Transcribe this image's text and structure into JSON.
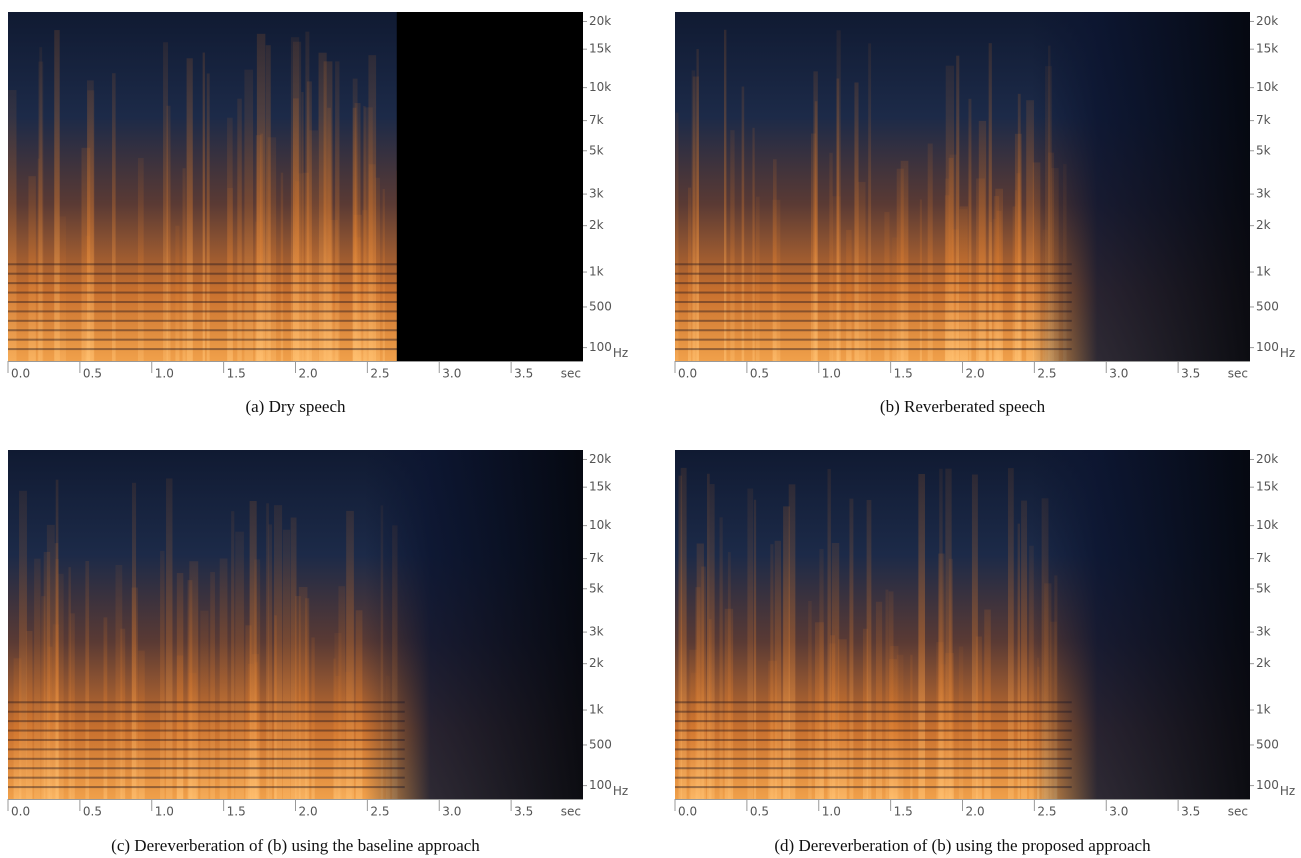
{
  "chart_data": [
    {
      "type": "spectrogram",
      "caption": "(a) Dry speech",
      "x_unit": "sec",
      "y_unit": "Hz",
      "yscale": "mel",
      "xlim": [
        0,
        4.0
      ],
      "ylim": [
        0,
        22050
      ],
      "xticks": [
        {
          "value": 0,
          "label": "0.0"
        },
        0.5,
        {
          "value": 1,
          "label": "1.0"
        },
        1.5,
        {
          "value": 2,
          "label": "2.0"
        },
        2.5,
        {
          "value": 3,
          "label": "3.0"
        },
        3.5
      ],
      "yticks": [
        100,
        500,
        {
          "value": 1000,
          "label": "1k"
        },
        {
          "value": 2000,
          "label": "2k"
        },
        {
          "value": 3000,
          "label": "3k"
        },
        {
          "value": 5000,
          "label": "5k"
        },
        {
          "value": 7000,
          "label": "7k"
        },
        {
          "value": 10000,
          "label": "10k"
        },
        {
          "value": 15000,
          "label": "15k"
        },
        {
          "value": 20000,
          "label": "20k"
        }
      ]
    },
    {
      "type": "spectrogram",
      "caption": "(b) Reverberated speech",
      "x_unit": "sec",
      "y_unit": "Hz",
      "yscale": "mel",
      "xlim": [
        0,
        4.0
      ],
      "ylim": [
        0,
        22050
      ],
      "xticks": [
        {
          "value": 0,
          "label": "0.0"
        },
        0.5,
        {
          "value": 1,
          "label": "1.0"
        },
        1.5,
        {
          "value": 2,
          "label": "2.0"
        },
        2.5,
        {
          "value": 3,
          "label": "3.0"
        },
        3.5
      ],
      "yticks": [
        100,
        500,
        {
          "value": 1000,
          "label": "1k"
        },
        {
          "value": 2000,
          "label": "2k"
        },
        {
          "value": 3000,
          "label": "3k"
        },
        {
          "value": 5000,
          "label": "5k"
        },
        {
          "value": 7000,
          "label": "7k"
        },
        {
          "value": 10000,
          "label": "10k"
        },
        {
          "value": 15000,
          "label": "15k"
        },
        {
          "value": 20000,
          "label": "20k"
        }
      ]
    },
    {
      "type": "spectrogram",
      "caption": "(c) Dereverberation of (b) using the baseline approach",
      "x_unit": "sec",
      "y_unit": "Hz",
      "yscale": "mel",
      "xlim": [
        0,
        4.0
      ],
      "ylim": [
        0,
        22050
      ],
      "xticks": [
        {
          "value": 0,
          "label": "0.0"
        },
        0.5,
        {
          "value": 1,
          "label": "1.0"
        },
        1.5,
        {
          "value": 2,
          "label": "2.0"
        },
        2.5,
        {
          "value": 3,
          "label": "3.0"
        },
        3.5
      ],
      "yticks": [
        100,
        500,
        {
          "value": 1000,
          "label": "1k"
        },
        {
          "value": 2000,
          "label": "2k"
        },
        {
          "value": 3000,
          "label": "3k"
        },
        {
          "value": 5000,
          "label": "5k"
        },
        {
          "value": 7000,
          "label": "7k"
        },
        {
          "value": 10000,
          "label": "10k"
        },
        {
          "value": 15000,
          "label": "15k"
        },
        {
          "value": 20000,
          "label": "20k"
        }
      ]
    },
    {
      "type": "spectrogram",
      "caption": "(d) Dereverberation of (b) using the proposed approach",
      "x_unit": "sec",
      "y_unit": "Hz",
      "yscale": "mel",
      "xlim": [
        0,
        4.0
      ],
      "ylim": [
        0,
        22050
      ],
      "xticks": [
        {
          "value": 0,
          "label": "0.0"
        },
        0.5,
        {
          "value": 1,
          "label": "1.0"
        },
        1.5,
        {
          "value": 2,
          "label": "2.0"
        },
        2.5,
        {
          "value": 3,
          "label": "3.0"
        },
        3.5
      ],
      "yticks": [
        100,
        500,
        {
          "value": 1000,
          "label": "1k"
        },
        {
          "value": 2000,
          "label": "2k"
        },
        {
          "value": 3000,
          "label": "3k"
        },
        {
          "value": 5000,
          "label": "5k"
        },
        {
          "value": 7000,
          "label": "7k"
        },
        {
          "value": 10000,
          "label": "10k"
        },
        {
          "value": 15000,
          "label": "15k"
        },
        {
          "value": 20000,
          "label": "20k"
        }
      ]
    }
  ]
}
